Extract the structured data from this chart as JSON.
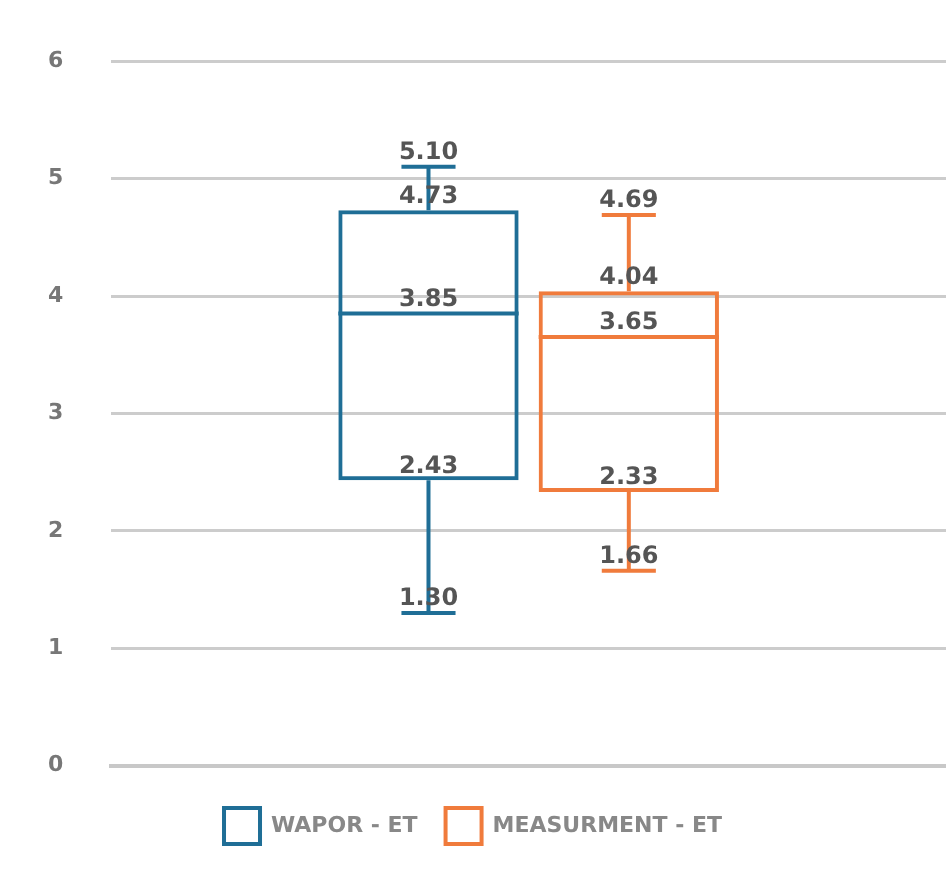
{
  "chart_data": {
    "type": "box",
    "categories": [
      null
    ],
    "series": [
      {
        "name": "WAPOR - ET",
        "color": "#1f6e96",
        "boxes": [
          {
            "low": 1.3,
            "q1": 2.43,
            "median": 3.85,
            "q3": 4.73,
            "high": 5.1
          }
        ],
        "value_labels": [
          [
            "5.10",
            "4.73",
            "3.85",
            "2.43",
            "1.30"
          ]
        ]
      },
      {
        "name": "MEASURMENT - ET",
        "color": "#f07b3c",
        "boxes": [
          {
            "low": 1.66,
            "q1": 2.33,
            "median": 3.65,
            "q3": 4.04,
            "high": 4.69
          }
        ],
        "value_labels": [
          [
            "4.69",
            "4.04",
            "3.65",
            "2.33",
            "1.66"
          ]
        ]
      }
    ],
    "ylim": [
      0,
      6
    ],
    "yticks": [
      0,
      1,
      2,
      3,
      4,
      5,
      6
    ],
    "grid": "y",
    "legend": "bottom"
  }
}
